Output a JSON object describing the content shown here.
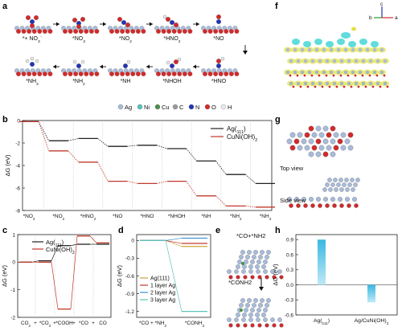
{
  "panels": {
    "a": {
      "letter": "a",
      "steps": [
        "*+ NO3⁻",
        "*NO3",
        "*NO2",
        "*HNO2",
        "*NO",
        "*HNO",
        "*NHOH",
        "*NH",
        "*NH2",
        "*NH3"
      ],
      "legend": [
        "Ag",
        "Ni",
        "Cu",
        "C",
        "N",
        "O",
        "H"
      ],
      "colors": {
        "Ag": "#a8bcd8",
        "Ni": "#55c2bd",
        "Cu": "#4b8f49",
        "C": "#9a9a9a",
        "N": "#2233b8",
        "O": "#d22a2a",
        "H": "#ececec"
      }
    },
    "b": {
      "letter": "b"
    },
    "c": {
      "letter": "c"
    },
    "d": {
      "letter": "d"
    },
    "e": {
      "letter": "e",
      "label1": "*CO+*NH2",
      "label2": "*CONH2"
    },
    "f": {
      "letter": "f",
      "axes": {
        "c": "c",
        "b": "b",
        "a": "a"
      }
    },
    "g": {
      "letter": "g",
      "top": "Top view",
      "side": "Side view"
    },
    "h": {
      "letter": "h"
    }
  },
  "chart_data": [
    {
      "id": "b",
      "type": "line",
      "ylabel": "ΔG (eV)",
      "categories": [
        "*NO3",
        "*NO2",
        "*HNO2",
        "*NO",
        "*HNO",
        "*NHOH",
        "*NH",
        "*NH2",
        "*NH3"
      ],
      "ylim": [
        -8,
        0
      ],
      "yticks": [
        0,
        -2,
        -4,
        -6,
        -8
      ],
      "legend_position": "top-right",
      "series": [
        {
          "name": "Ag(111)",
          "color": "#222222",
          "values": [
            -0.1,
            -1.8,
            -1.6,
            -2.3,
            -2.2,
            -2.5,
            -3.6,
            -4.8,
            -5.6
          ]
        },
        {
          "name": "CuNi(OH)2",
          "color": "#c0392b",
          "values": [
            -0.1,
            -2.7,
            -3.7,
            -5.4,
            -5.6,
            -5.4,
            -6.7,
            -7.6,
            -7.7
          ]
        }
      ]
    },
    {
      "id": "c",
      "type": "line",
      "ylabel": "ΔG (eV)",
      "categories": [
        "CO2",
        "*CO2",
        "*COOH",
        "*CO",
        "CO"
      ],
      "category_separators": [
        "+",
        "+",
        "+",
        "+"
      ],
      "ylim": [
        -2,
        1
      ],
      "yticks": [
        1,
        0,
        -1,
        -2
      ],
      "legend_position": "top-left",
      "series": [
        {
          "name": "Ag(111)",
          "color": "#222222",
          "values": [
            0,
            0.05,
            0.6,
            0.65,
            0.65
          ]
        },
        {
          "name": "CuNi(OH)2",
          "color": "#c0392b",
          "values": [
            0,
            0,
            -1.7,
            0.95,
            0.7
          ]
        }
      ]
    },
    {
      "id": "d",
      "type": "line",
      "ylabel": "ΔG (eV)",
      "categories": [
        "*CO + *NH2",
        "*CONH2"
      ],
      "ylim": [
        -1.3,
        0.1
      ],
      "yticks": [
        0,
        -0.3,
        -0.6,
        -0.9,
        -1.2
      ],
      "legend_position": "bottom-left",
      "series": [
        {
          "name": "Ag(111)",
          "color": "#c9a43a",
          "values": [
            0,
            -0.1
          ]
        },
        {
          "name": "1 layer Ag",
          "color": "#c0392b",
          "values": [
            0,
            -0.05
          ]
        },
        {
          "name": "2 layer Ag",
          "color": "#3a8fd1",
          "values": [
            0,
            0.04
          ]
        },
        {
          "name": "3 layer Ag",
          "color": "#5cc2b8",
          "values": [
            0,
            -1.2
          ]
        }
      ]
    },
    {
      "id": "h",
      "type": "bar",
      "ylabel": "ΔG (eV)",
      "categories": [
        "Ag(111)",
        "Ag/CuNi(OH)2"
      ],
      "values": [
        0.9,
        -0.35
      ],
      "ylim": [
        -0.6,
        1.0
      ],
      "yticks": [
        0.9,
        0.6,
        0.3,
        0.0,
        -0.3,
        -0.6
      ],
      "color": "#3ab8e0"
    }
  ]
}
